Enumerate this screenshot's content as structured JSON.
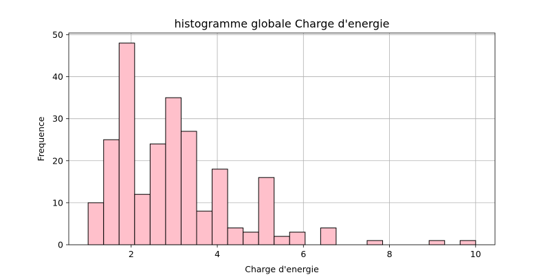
{
  "chart_data": {
    "type": "bar",
    "title": "histogramme globale Charge d'energie",
    "xlabel": "Charge d'energie",
    "ylabel": "Frequence",
    "xlim": [
      0.55,
      10.45
    ],
    "ylim": [
      0,
      50.4
    ],
    "xticks": [
      2,
      4,
      6,
      8,
      10
    ],
    "yticks": [
      0,
      10,
      20,
      30,
      40,
      50
    ],
    "grid": true,
    "bar_color": "#ffc0cb",
    "edge_color": "#000000",
    "bins": {
      "start": 1.0,
      "width": 0.36,
      "counts": [
        10,
        25,
        48,
        12,
        24,
        35,
        27,
        8,
        18,
        4,
        3,
        16,
        2,
        3,
        0,
        4,
        0,
        0,
        1,
        0,
        0,
        0,
        1,
        0,
        1
      ]
    }
  }
}
